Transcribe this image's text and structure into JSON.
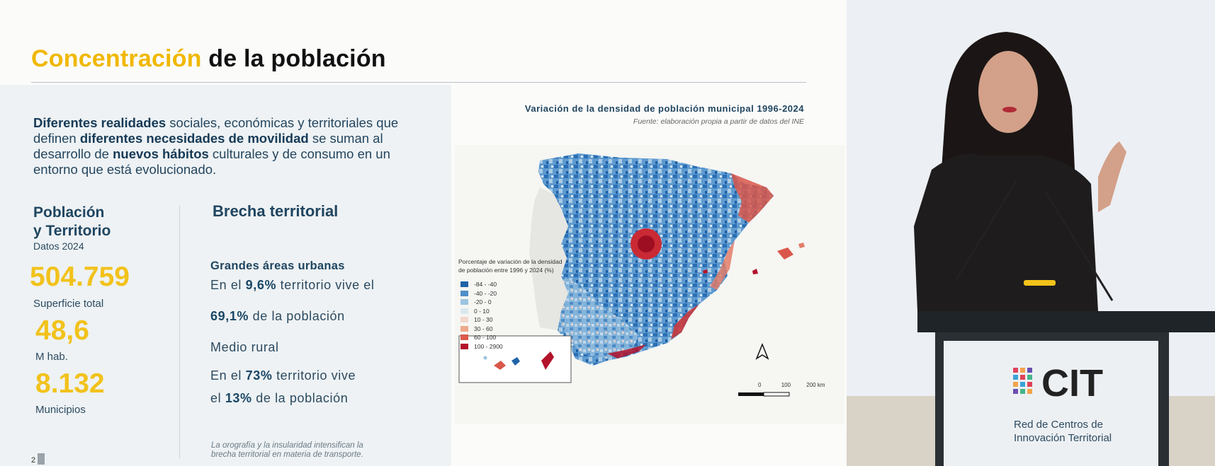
{
  "slide": {
    "title_highlight": "Concentración",
    "title_rest": " de la población",
    "intro": {
      "p1": "Diferentes realidades",
      "p2": " sociales, económicas y territoriales que definen ",
      "p3": "diferentes necesidades de movilidad",
      "p4": " se suman al desarrollo de ",
      "p5": "nuevos hábitos",
      "p6": " culturales y de consumo en un entorno que está evolucionado."
    },
    "stats": {
      "heading_line1": "Población",
      "heading_line2": "y Territorio",
      "subheading": "Datos 2024",
      "items": [
        {
          "value": "504.759",
          "label": "Superficie total"
        },
        {
          "value": "48,6",
          "label": "M hab."
        },
        {
          "value": "8.132",
          "label": "Municipios"
        }
      ]
    },
    "brecha": {
      "heading": "Brecha territorial",
      "urban_heading": "Grandes áreas urbanas",
      "urban_l1a": "En el ",
      "urban_l1b": "9,6%",
      "urban_l1c": " territorio vive el",
      "urban_l2a": "69,1%",
      "urban_l2b": " de la población",
      "rural_heading": "Medio rural",
      "rural_l1a": "En el ",
      "rural_l1b": "73%",
      "rural_l1c": " territorio vive",
      "rural_l2a": "el ",
      "rural_l2b": "13%",
      "rural_l2c": " de la población",
      "footnote_l1": "La orografía y la insularidad intensifican la",
      "footnote_l2": "brecha territorial en materia de transporte."
    },
    "page_number": "2",
    "map": {
      "title": "Variación de la densidad de población municipal 1996-2024",
      "source": "Fuente: elaboración propia a partir de datos del INE",
      "legend_title_l1": "Porcentaje de variación de la densidad",
      "legend_title_l2": "de población entre 1996 y 2024 (%)",
      "legend": [
        {
          "label": "-84 - -40",
          "color": "#1f63a8"
        },
        {
          "label": "-40 - -20",
          "color": "#4f8fc8"
        },
        {
          "label": "-20 - 0",
          "color": "#9cc4e0"
        },
        {
          "label": "0 - 10",
          "color": "#d9e8ef"
        },
        {
          "label": "10 - 30",
          "color": "#f1d7cc"
        },
        {
          "label": "30 - 60",
          "color": "#eea98a"
        },
        {
          "label": "60 - 100",
          "color": "#dc5b4c"
        },
        {
          "label": "100 - 2900",
          "color": "#b3122b"
        }
      ],
      "scale_labels": [
        "0",
        "100",
        "200 km"
      ]
    }
  },
  "video": {
    "brand_name": "CIT",
    "brand_sub_l1": "Red de Centros de",
    "brand_sub_l2": "Innovación Territorial"
  }
}
